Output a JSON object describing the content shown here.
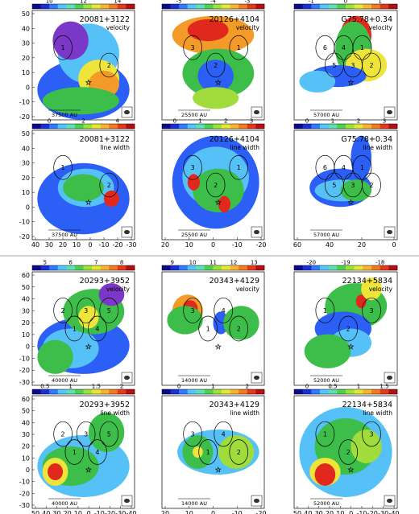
{
  "colorbar_palette": [
    "#0a0a8a",
    "#1c2fd6",
    "#2f7bff",
    "#55c3ff",
    "#5de0b5",
    "#4fcf4f",
    "#9be33a",
    "#e6e635",
    "#f5b52e",
    "#f27a22",
    "#e23a1a",
    "#b50f10"
  ],
  "colors": {
    "blue": "#2b5ff5",
    "lightblue": "#56c1f7",
    "green": "#3dbd4a",
    "lime": "#9fdc3c",
    "yellow": "#eee43a",
    "orange": "#f39a28",
    "red": "#e0281c",
    "purple": "#7b38c8",
    "darkblue": "#1a2aa8"
  },
  "top_section": {
    "panels": [
      {
        "name": "20081+3122",
        "kind": "velocity",
        "scale": "37500 AU",
        "colorbar_ticks": [
          "10",
          "12",
          "14"
        ],
        "y_ticks": [
          "50",
          "40",
          "30",
          "20",
          "10",
          "0",
          "-10",
          "-20"
        ],
        "x_ticks": [],
        "labels": [
          "1",
          "2"
        ]
      },
      {
        "name": "20126+4104",
        "kind": "velocity",
        "scale": "25500 AU",
        "colorbar_ticks": [
          "-5",
          "-4",
          "-3"
        ],
        "y_ticks": [],
        "x_ticks": [],
        "labels": [
          "3",
          "2",
          "1"
        ]
      },
      {
        "name": "G75.78+0.34",
        "kind": "velocity",
        "scale": "57000 AU",
        "colorbar_ticks": [
          "-1",
          "0",
          "1"
        ],
        "y_ticks": [],
        "x_ticks": [],
        "labels": [
          "6",
          "5",
          "4",
          "3",
          "1",
          "2"
        ]
      },
      {
        "name": "20081+3122",
        "kind": "line width",
        "scale": "37500 AU",
        "colorbar_ticks": [
          "0",
          "2",
          "4"
        ],
        "y_ticks": [
          "50",
          "40",
          "30",
          "20",
          "10",
          "0",
          "-10",
          "-20"
        ],
        "x_ticks": [
          "40",
          "30",
          "20",
          "10",
          "0",
          "-10",
          "-20",
          "-30"
        ],
        "labels": [
          "1",
          "2"
        ]
      },
      {
        "name": "20126+4104",
        "kind": "line width",
        "scale": "25500 AU",
        "colorbar_ticks": [
          "0",
          "1",
          "2",
          "3"
        ],
        "y_ticks": [],
        "x_ticks": [
          "20",
          "10",
          "0",
          "-10",
          "-20"
        ],
        "labels": [
          "3",
          "2",
          "1"
        ]
      },
      {
        "name": "G75.78+0.34",
        "kind": "line width",
        "scale": "57000 AU",
        "colorbar_ticks": [
          "0",
          "1",
          "2",
          "3"
        ],
        "y_ticks": [],
        "x_ticks": [
          "60",
          "40",
          "20",
          "0"
        ],
        "labels": [
          "6",
          "5",
          "4",
          "3",
          "1",
          "2"
        ]
      }
    ]
  },
  "bottom_section": {
    "panels": [
      {
        "name": "20293+3952",
        "kind": "velocity",
        "scale": "40000 AU",
        "colorbar_ticks": [
          "5",
          "6",
          "7",
          "8"
        ],
        "y_ticks": [
          "60",
          "50",
          "40",
          "30",
          "20",
          "10",
          "0",
          "-10",
          "-20",
          "-30"
        ],
        "x_ticks": [],
        "labels": [
          "2",
          "1",
          "3",
          "4",
          "5"
        ]
      },
      {
        "name": "20343+4129",
        "kind": "velocity",
        "scale": "14000 AU",
        "colorbar_ticks": [
          "9",
          "10",
          "11",
          "12",
          "13"
        ],
        "y_ticks": [],
        "x_ticks": [],
        "labels": [
          "3",
          "1",
          "4",
          "2"
        ]
      },
      {
        "name": "22134+5834",
        "kind": "velocity",
        "scale": "52000 AU",
        "colorbar_ticks": [
          "-20",
          "-19",
          "-18"
        ],
        "y_ticks": [],
        "x_ticks": [],
        "labels": [
          "1",
          "2",
          "3"
        ]
      },
      {
        "name": "20293+3952",
        "kind": "line width",
        "scale": "40000 AU",
        "colorbar_ticks": [
          "0.5",
          "1",
          "1.5",
          "2"
        ],
        "y_ticks": [
          "60",
          "50",
          "40",
          "30",
          "20",
          "10",
          "0",
          "-10",
          "-20",
          "-30"
        ],
        "x_ticks": [
          "50",
          "40",
          "30",
          "20",
          "10",
          "0",
          "-10",
          "-20",
          "-30",
          "-40"
        ],
        "labels": [
          "2",
          "1",
          "3",
          "4",
          "5"
        ]
      },
      {
        "name": "20343+4129",
        "kind": "line width",
        "scale": "14000 AU",
        "colorbar_ticks": [
          "0",
          "1",
          "2"
        ],
        "y_ticks": [],
        "x_ticks": [
          "20",
          "10",
          "0",
          "-10",
          "-20"
        ],
        "labels": [
          "3",
          "1",
          "4",
          "2"
        ]
      },
      {
        "name": "22134+5834",
        "kind": "line width",
        "scale": "52000 AU",
        "colorbar_ticks": [
          "0",
          "0.5",
          "1",
          "1.5"
        ],
        "y_ticks": [],
        "x_ticks": [
          "50",
          "40",
          "30",
          "20",
          "10",
          "0",
          "-10",
          "-20",
          "-30",
          "-40"
        ],
        "labels": [
          "1",
          "2",
          "3"
        ]
      }
    ]
  }
}
